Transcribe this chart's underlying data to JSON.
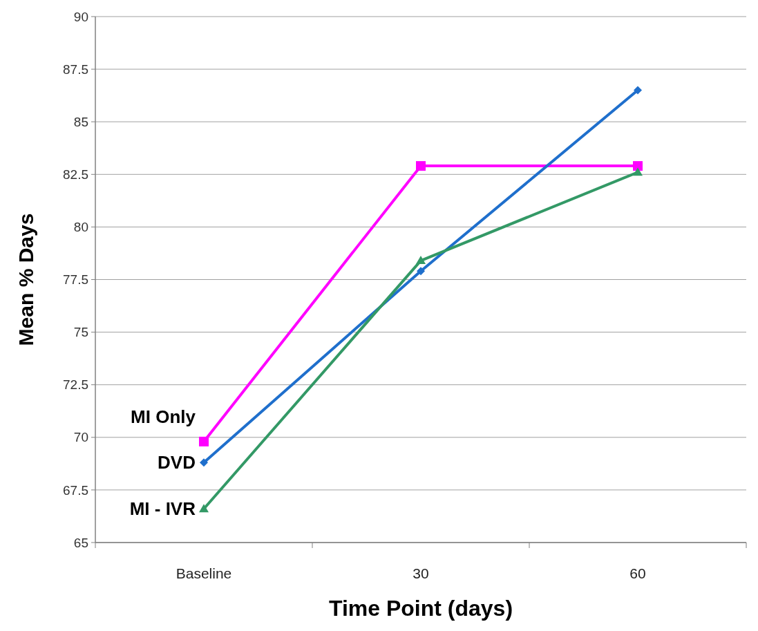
{
  "chart_data": {
    "type": "line",
    "xlabel": "Time Point (days)",
    "ylabel": "Mean % Days",
    "categories": [
      "Baseline",
      "30",
      "60"
    ],
    "series": [
      {
        "name": "MI Only",
        "color": "#ff00ff",
        "marker": "square",
        "values": [
          69.8,
          82.9,
          82.9
        ]
      },
      {
        "name": "DVD",
        "color": "#1f6fcc",
        "marker": "diamond",
        "values": [
          68.8,
          77.9,
          86.5
        ]
      },
      {
        "name": "MI - IVR",
        "color": "#339966",
        "marker": "triangle",
        "values": [
          66.6,
          78.4,
          82.6
        ]
      }
    ],
    "ylim": [
      65,
      90
    ],
    "yticks": [
      65,
      {
        "value": 67.5,
        "label": "67.5"
      },
      70,
      {
        "value": 72.5,
        "label": "72.5"
      },
      75,
      {
        "value": 77.5,
        "label": "77.5"
      },
      80,
      {
        "value": 82.5,
        "label": "82.5"
      },
      85,
      {
        "value": 87.5,
        "label": "87.5"
      },
      90
    ],
    "grid": "y",
    "legend": false
  }
}
